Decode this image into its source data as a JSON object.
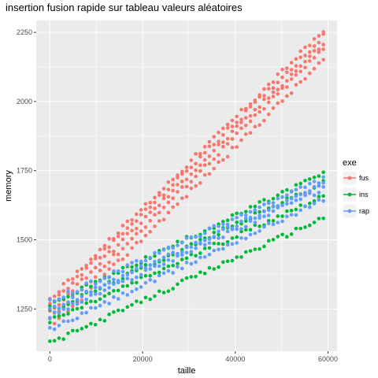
{
  "chart_data": {
    "type": "scatter",
    "title": "insertion fusion rapide sur tableau valeurs aléatoires",
    "xlabel": "taille",
    "ylabel": "memory",
    "xlim": [
      -2950,
      61950
    ],
    "ylim": [
      1097,
      2293
    ],
    "x_ticks": [
      0,
      20000,
      40000,
      60000
    ],
    "x_tick_labels": [
      "0",
      "20000",
      "40000",
      "60000"
    ],
    "y_ticks": [
      1250,
      1500,
      1750,
      2000,
      2250
    ],
    "y_tick_labels": [
      "1250",
      "1500",
      "1750",
      "2000",
      "2250"
    ],
    "grid": true,
    "legend_position": "right",
    "legend_title": "exe",
    "series": [
      {
        "name": "fus",
        "color": "#F8766D",
        "bands": [
          {
            "x_start": 0,
            "x_end": 59000,
            "y_start": 1175,
            "y_end": 2150
          },
          {
            "x_start": 0,
            "x_end": 59000,
            "y_start": 1210,
            "y_end": 2190
          },
          {
            "x_start": 0,
            "x_end": 59000,
            "y_start": 1240,
            "y_end": 2210
          },
          {
            "x_start": 0,
            "x_end": 59000,
            "y_start": 1265,
            "y_end": 2235
          },
          {
            "x_start": 0,
            "x_end": 59000,
            "y_start": 1285,
            "y_end": 2255
          }
        ]
      },
      {
        "name": "ins",
        "color": "#00BA38",
        "bands": [
          {
            "x_start": 0,
            "x_end": 59000,
            "y_start": 1125,
            "y_end": 1580
          },
          {
            "x_start": 0,
            "x_end": 59000,
            "y_start": 1205,
            "y_end": 1660
          },
          {
            "x_start": 0,
            "x_end": 59000,
            "y_start": 1240,
            "y_end": 1705
          },
          {
            "x_start": 0,
            "x_end": 59000,
            "y_start": 1265,
            "y_end": 1740
          }
        ]
      },
      {
        "name": "rap",
        "color": "#619CFF",
        "bands": [
          {
            "x_start": 0,
            "x_end": 59000,
            "y_start": 1175,
            "y_end": 1645
          },
          {
            "x_start": 0,
            "x_end": 59000,
            "y_start": 1225,
            "y_end": 1685
          },
          {
            "x_start": 0,
            "x_end": 59000,
            "y_start": 1245,
            "y_end": 1700
          },
          {
            "x_start": 0,
            "x_end": 59000,
            "y_start": 1275,
            "y_end": 1720
          }
        ]
      }
    ]
  }
}
